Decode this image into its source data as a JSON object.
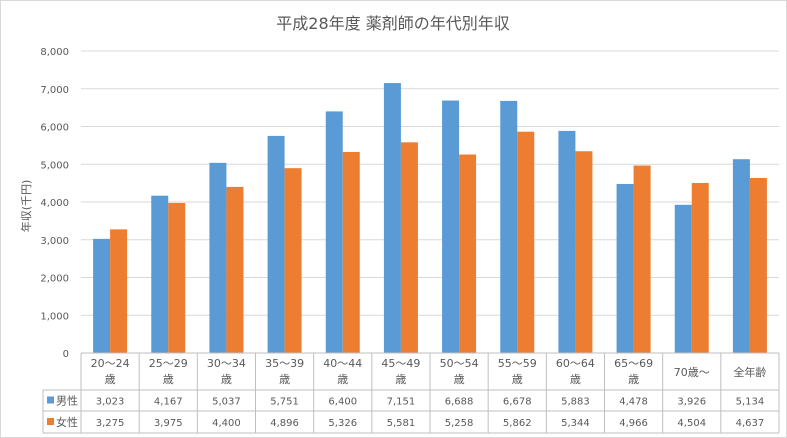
{
  "chart_data": {
    "type": "bar",
    "title": "平成28年度 薬剤師の年代別年収",
    "ylabel": "年収(千円)",
    "xlabel": "",
    "ylim": [
      0,
      8000
    ],
    "yticks": [
      "0",
      "1,000",
      "2,000",
      "3,000",
      "4,000",
      "5,000",
      "6,000",
      "7,000",
      "8,000"
    ],
    "grid": true,
    "categories": [
      [
        "20～24",
        "歳"
      ],
      [
        "25～29",
        "歳"
      ],
      [
        "30～34",
        "歳"
      ],
      [
        "35～39",
        "歳"
      ],
      [
        "40～44",
        "歳"
      ],
      [
        "45～49",
        "歳"
      ],
      [
        "50～54",
        "歳"
      ],
      [
        "55～59",
        "歳"
      ],
      [
        "60～64",
        "歳"
      ],
      [
        "65～69",
        "歳"
      ],
      [
        "70歳～"
      ],
      [
        "全年齢"
      ]
    ],
    "series": [
      {
        "name": "男性",
        "color": "#5b9bd5",
        "values": [
          3023,
          4167,
          5037,
          5751,
          6400,
          7151,
          6688,
          6678,
          5883,
          4478,
          3926,
          5134
        ],
        "labels": [
          "3,023",
          "4,167",
          "5,037",
          "5,751",
          "6,400",
          "7,151",
          "6,688",
          "6,678",
          "5,883",
          "4,478",
          "3,926",
          "5,134"
        ]
      },
      {
        "name": "女性",
        "color": "#ed7d31",
        "values": [
          3275,
          3975,
          4400,
          4896,
          5326,
          5581,
          5258,
          5862,
          5344,
          4966,
          4504,
          4637
        ],
        "labels": [
          "3,275",
          "3,975",
          "4,400",
          "4,896",
          "5,326",
          "5,581",
          "5,258",
          "5,862",
          "5,344",
          "4,966",
          "4,504",
          "4,637"
        ]
      }
    ],
    "legend": "data-table"
  }
}
